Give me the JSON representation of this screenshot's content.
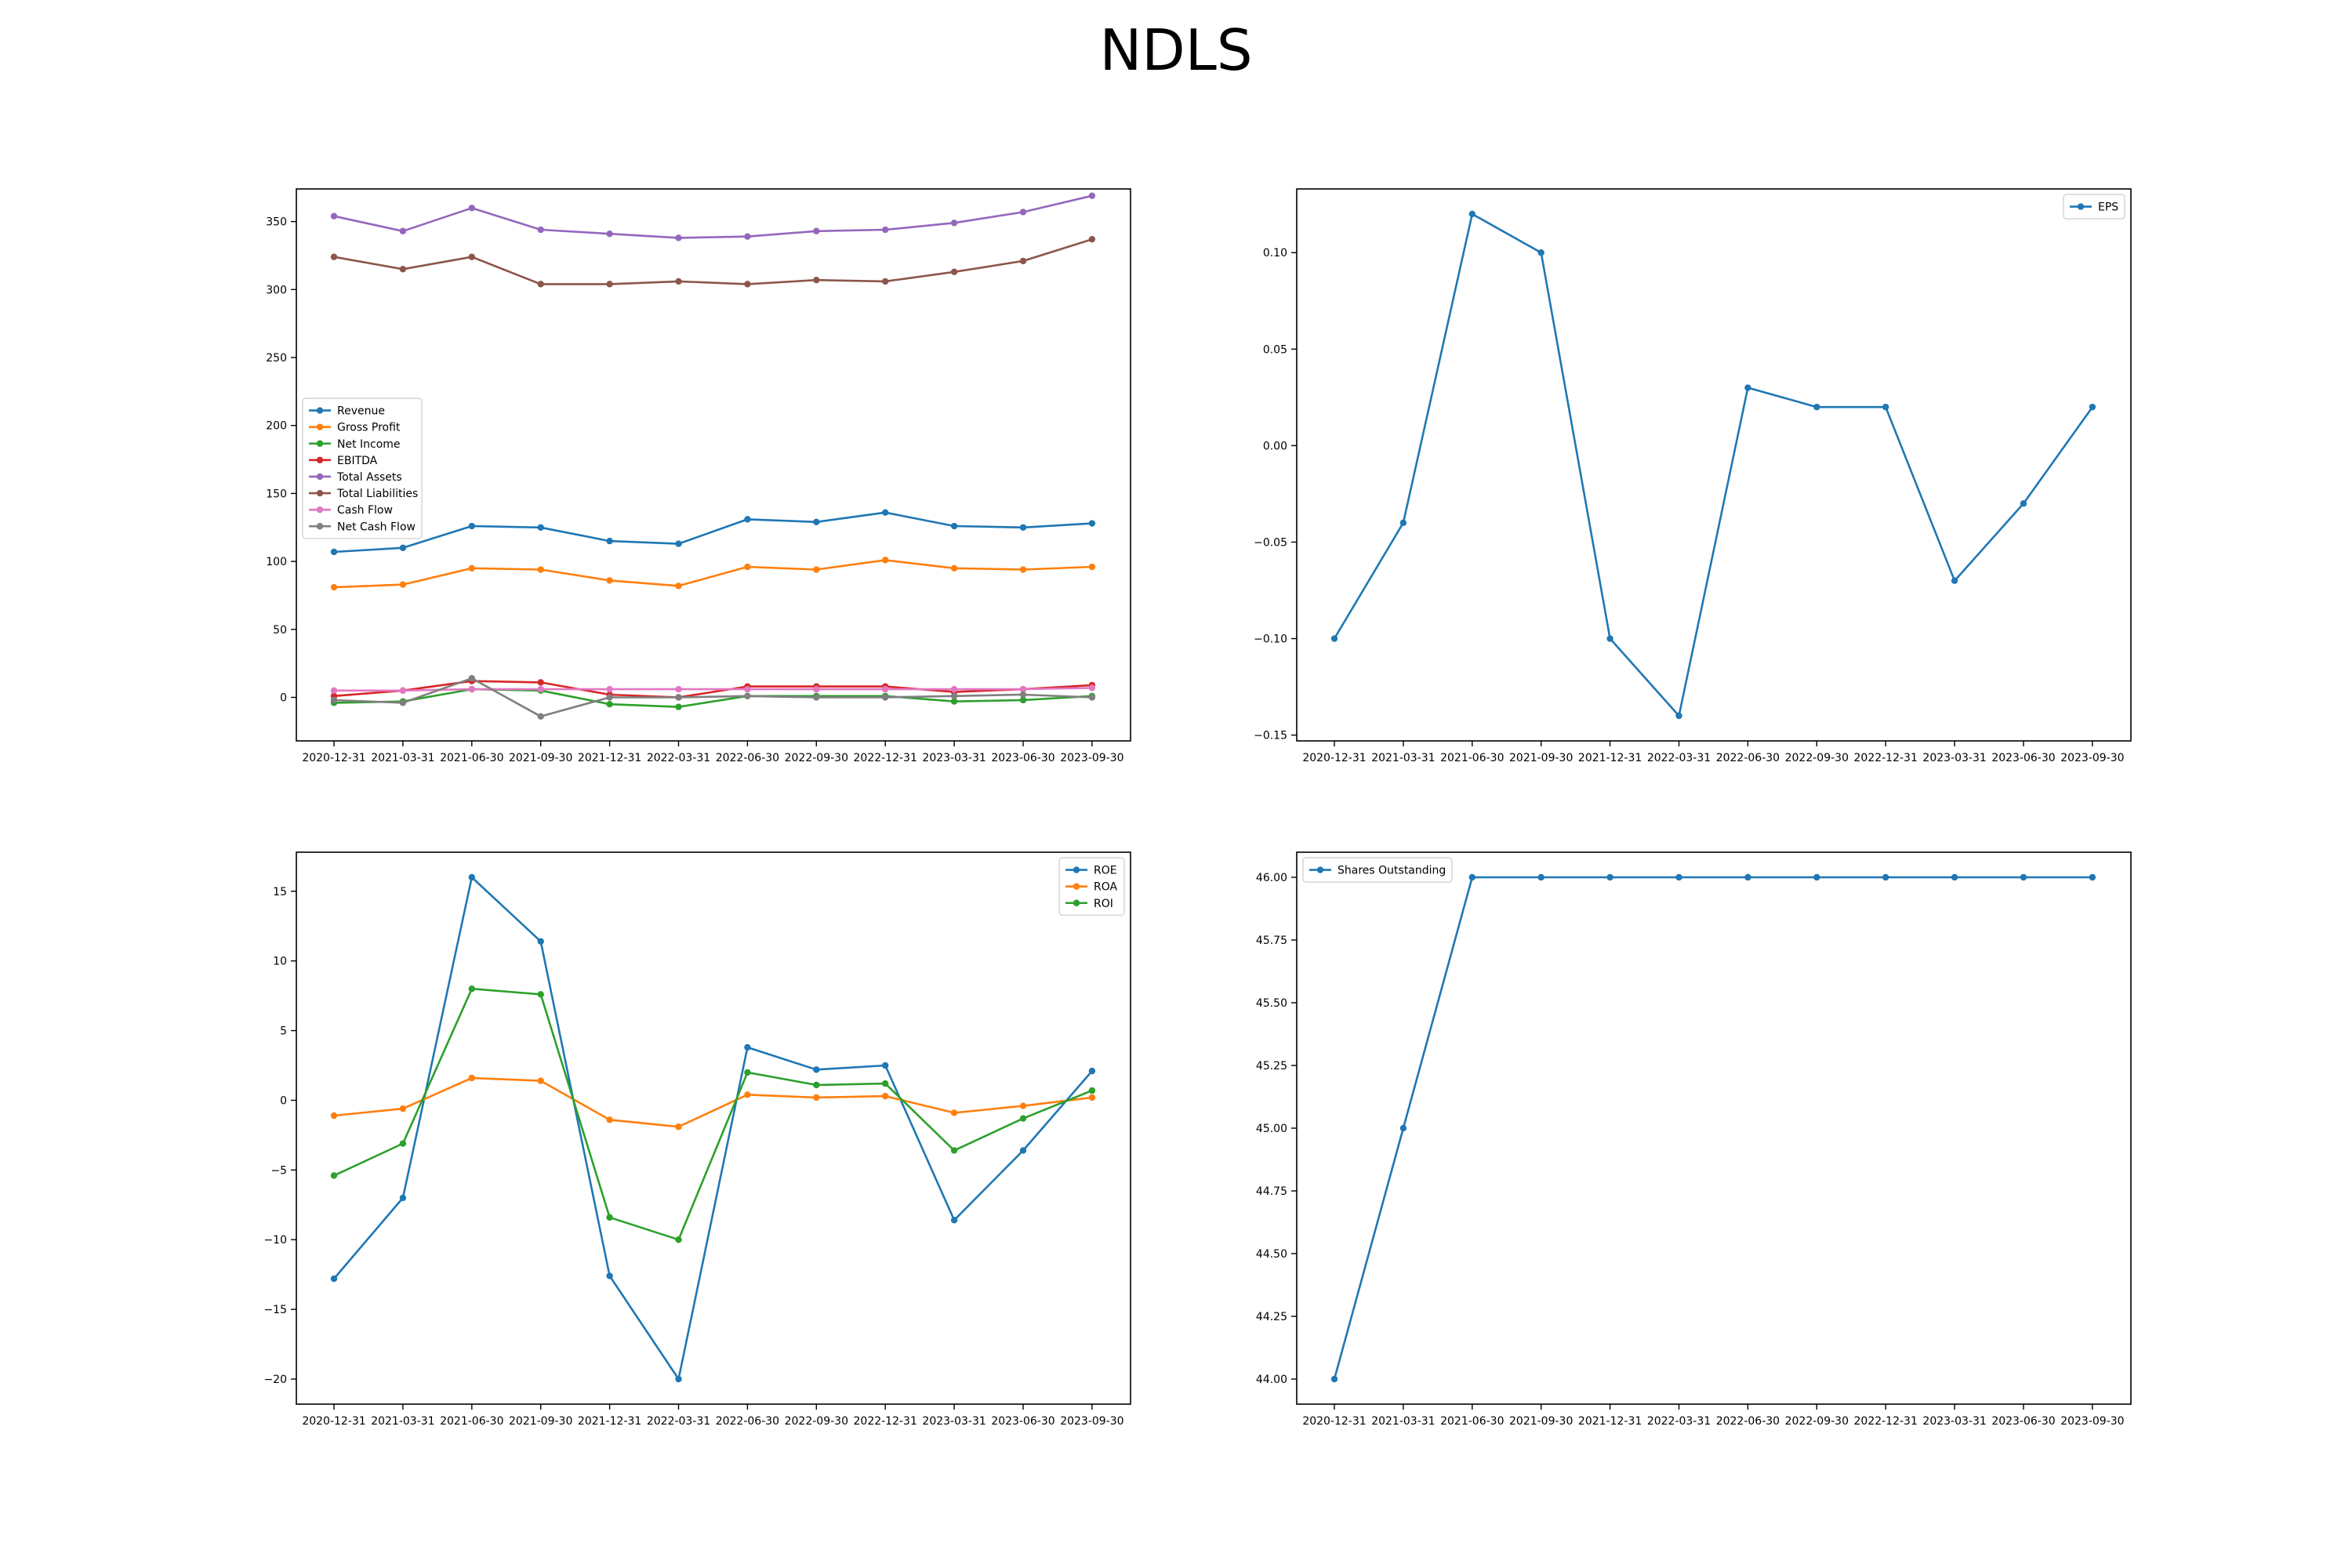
{
  "title": "NDLS",
  "colors": {
    "blue": "#1f77b4",
    "orange": "#ff7f0e",
    "green": "#2ca02c",
    "red": "#d62728",
    "purple": "#9467bd",
    "brown": "#8c564b",
    "pink": "#e377c2",
    "gray": "#7f7f7f"
  },
  "chart_data": [
    {
      "type": "line",
      "categories": [
        "2020-12-31",
        "2021-03-31",
        "2021-06-30",
        "2021-09-30",
        "2021-12-31",
        "2022-03-31",
        "2022-06-30",
        "2022-09-30",
        "2022-12-31",
        "2023-03-31",
        "2023-06-30",
        "2023-09-30"
      ],
      "ylim": [
        -32,
        374
      ],
      "yticks": [
        0,
        50,
        100,
        150,
        200,
        250,
        300,
        350
      ],
      "ytick_labels": [
        "0",
        "50",
        "100",
        "150",
        "200",
        "250",
        "300",
        "350"
      ],
      "legend": "center-left",
      "grid": false,
      "series": [
        {
          "name": "Revenue",
          "color": "#1f77b4",
          "values": [
            107,
            110,
            126,
            125,
            115,
            113,
            131,
            129,
            136,
            126,
            125,
            128
          ]
        },
        {
          "name": "Gross Profit",
          "color": "#ff7f0e",
          "values": [
            81,
            83,
            95,
            94,
            86,
            82,
            96,
            94,
            101,
            95,
            94,
            96
          ]
        },
        {
          "name": "Net Income",
          "color": "#2ca02c",
          "values": [
            -4,
            -3,
            6,
            5,
            -5,
            -7,
            1,
            1,
            1,
            -3,
            -2,
            1
          ]
        },
        {
          "name": "EBITDA",
          "color": "#d62728",
          "values": [
            1,
            5,
            12,
            11,
            2,
            0,
            8,
            8,
            8,
            4,
            6,
            9
          ]
        },
        {
          "name": "Total Assets",
          "color": "#9467bd",
          "values": [
            354,
            343,
            360,
            344,
            341,
            338,
            339,
            343,
            344,
            349,
            357,
            369
          ]
        },
        {
          "name": "Total Liabilities",
          "color": "#8c564b",
          "values": [
            324,
            315,
            324,
            304,
            304,
            306,
            304,
            307,
            306,
            313,
            321,
            337
          ]
        },
        {
          "name": "Cash Flow",
          "color": "#e377c2",
          "values": [
            5,
            5,
            6,
            6,
            6,
            6,
            6,
            6,
            6,
            6,
            6,
            7
          ]
        },
        {
          "name": "Net Cash Flow",
          "color": "#7f7f7f",
          "values": [
            -2,
            -4,
            14,
            -14,
            0,
            0,
            1,
            0,
            0,
            1,
            2,
            0
          ]
        }
      ]
    },
    {
      "type": "line",
      "categories": [
        "2020-12-31",
        "2021-03-31",
        "2021-06-30",
        "2021-09-30",
        "2021-12-31",
        "2022-03-31",
        "2022-06-30",
        "2022-09-30",
        "2022-12-31",
        "2023-03-31",
        "2023-06-30",
        "2023-09-30"
      ],
      "ylim": [
        -0.153,
        0.133
      ],
      "yticks": [
        -0.15,
        -0.1,
        -0.05,
        0.0,
        0.05,
        0.1
      ],
      "ytick_labels": [
        "−0.15",
        "−0.10",
        "−0.05",
        "0.00",
        "0.05",
        "0.10"
      ],
      "legend": "top-right",
      "grid": false,
      "series": [
        {
          "name": "EPS",
          "color": "#1f77b4",
          "values": [
            -0.1,
            -0.04,
            0.12,
            0.1,
            -0.1,
            -0.14,
            0.03,
            0.02,
            0.02,
            -0.07,
            -0.03,
            0.02
          ]
        }
      ]
    },
    {
      "type": "line",
      "categories": [
        "2020-12-31",
        "2021-03-31",
        "2021-06-30",
        "2021-09-30",
        "2021-12-31",
        "2022-03-31",
        "2022-06-30",
        "2022-09-30",
        "2022-12-31",
        "2023-03-31",
        "2023-06-30",
        "2023-09-30"
      ],
      "ylim": [
        -21.8,
        17.8
      ],
      "yticks": [
        -20,
        -15,
        -10,
        -5,
        0,
        5,
        10,
        15
      ],
      "ytick_labels": [
        "−20",
        "−15",
        "−10",
        "−5",
        "0",
        "5",
        "10",
        "15"
      ],
      "legend": "top-right",
      "grid": false,
      "series": [
        {
          "name": "ROE",
          "color": "#1f77b4",
          "values": [
            -12.8,
            -7.0,
            16.0,
            11.4,
            -12.6,
            -20.0,
            3.8,
            2.2,
            2.5,
            -8.6,
            -3.6,
            2.1
          ]
        },
        {
          "name": "ROA",
          "color": "#ff7f0e",
          "values": [
            -1.1,
            -0.6,
            1.6,
            1.4,
            -1.4,
            -1.9,
            0.4,
            0.2,
            0.3,
            -0.9,
            -0.4,
            0.2
          ]
        },
        {
          "name": "ROI",
          "color": "#2ca02c",
          "values": [
            -5.4,
            -3.1,
            8.0,
            7.6,
            -8.4,
            -10.0,
            2.0,
            1.1,
            1.2,
            -3.6,
            -1.3,
            0.7
          ]
        }
      ]
    },
    {
      "type": "line",
      "categories": [
        "2020-12-31",
        "2021-03-31",
        "2021-06-30",
        "2021-09-30",
        "2021-12-31",
        "2022-03-31",
        "2022-06-30",
        "2022-09-30",
        "2022-12-31",
        "2023-03-31",
        "2023-06-30",
        "2023-09-30"
      ],
      "ylim": [
        43.9,
        46.1
      ],
      "yticks": [
        44.0,
        44.25,
        44.5,
        44.75,
        45.0,
        45.25,
        45.5,
        45.75,
        46.0
      ],
      "ytick_labels": [
        "44.00",
        "44.25",
        "44.50",
        "44.75",
        "45.00",
        "45.25",
        "45.50",
        "45.75",
        "46.00"
      ],
      "legend": "top-left",
      "grid": false,
      "series": [
        {
          "name": "Shares Outstanding",
          "color": "#1f77b4",
          "values": [
            44,
            45,
            46,
            46,
            46,
            46,
            46,
            46,
            46,
            46,
            46,
            46
          ]
        }
      ]
    }
  ]
}
